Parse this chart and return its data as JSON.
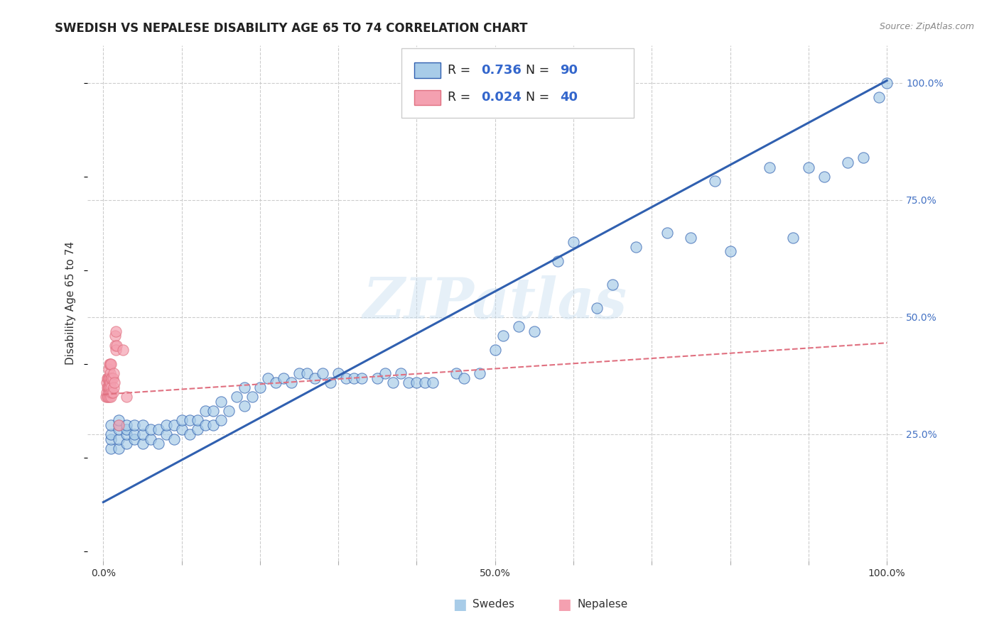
{
  "title": "SWEDISH VS NEPALESE DISABILITY AGE 65 TO 74 CORRELATION CHART",
  "source": "Source: ZipAtlas.com",
  "ylabel": "Disability Age 65 to 74",
  "xlabel": "",
  "watermark": "ZIPatlas",
  "swedish_R": 0.736,
  "swedish_N": 90,
  "nepalese_R": 0.024,
  "nepalese_N": 40,
  "xlim": [
    -0.02,
    1.02
  ],
  "ylim": [
    -0.02,
    1.08
  ],
  "xtick_positions": [
    0.0,
    0.1,
    0.2,
    0.3,
    0.4,
    0.5,
    0.6,
    0.7,
    0.8,
    0.9,
    1.0
  ],
  "xticklabels": [
    "0.0%",
    "",
    "",
    "",
    "",
    "50.0%",
    "",
    "",
    "",
    "",
    "100.0%"
  ],
  "ytick_positions": [
    0.25,
    0.5,
    0.75,
    1.0
  ],
  "ytick_labels": [
    "25.0%",
    "50.0%",
    "75.0%",
    "100.0%"
  ],
  "swedish_color": "#a8cce8",
  "nepalese_color": "#f4a0b0",
  "swedish_line_color": "#3060b0",
  "nepalese_line_color": "#e07080",
  "background_color": "#ffffff",
  "grid_color": "#cccccc",
  "swedish_scatter_x": [
    0.01,
    0.01,
    0.01,
    0.01,
    0.02,
    0.02,
    0.02,
    0.02,
    0.02,
    0.03,
    0.03,
    0.03,
    0.03,
    0.04,
    0.04,
    0.04,
    0.05,
    0.05,
    0.05,
    0.06,
    0.06,
    0.07,
    0.07,
    0.08,
    0.08,
    0.09,
    0.09,
    0.1,
    0.1,
    0.11,
    0.11,
    0.12,
    0.12,
    0.13,
    0.13,
    0.14,
    0.14,
    0.15,
    0.15,
    0.16,
    0.17,
    0.18,
    0.18,
    0.19,
    0.2,
    0.21,
    0.22,
    0.23,
    0.24,
    0.25,
    0.26,
    0.27,
    0.28,
    0.29,
    0.3,
    0.31,
    0.32,
    0.33,
    0.35,
    0.36,
    0.37,
    0.38,
    0.39,
    0.4,
    0.41,
    0.42,
    0.45,
    0.46,
    0.48,
    0.5,
    0.51,
    0.53,
    0.55,
    0.58,
    0.6,
    0.63,
    0.65,
    0.68,
    0.72,
    0.75,
    0.78,
    0.8,
    0.85,
    0.88,
    0.9,
    0.92,
    0.95,
    0.97,
    0.99,
    1.0
  ],
  "swedish_scatter_y": [
    0.22,
    0.24,
    0.25,
    0.27,
    0.22,
    0.24,
    0.26,
    0.27,
    0.28,
    0.23,
    0.25,
    0.26,
    0.27,
    0.24,
    0.25,
    0.27,
    0.23,
    0.25,
    0.27,
    0.24,
    0.26,
    0.23,
    0.26,
    0.25,
    0.27,
    0.24,
    0.27,
    0.26,
    0.28,
    0.25,
    0.28,
    0.26,
    0.28,
    0.27,
    0.3,
    0.27,
    0.3,
    0.28,
    0.32,
    0.3,
    0.33,
    0.31,
    0.35,
    0.33,
    0.35,
    0.37,
    0.36,
    0.37,
    0.36,
    0.38,
    0.38,
    0.37,
    0.38,
    0.36,
    0.38,
    0.37,
    0.37,
    0.37,
    0.37,
    0.38,
    0.36,
    0.38,
    0.36,
    0.36,
    0.36,
    0.36,
    0.38,
    0.37,
    0.38,
    0.43,
    0.46,
    0.48,
    0.47,
    0.62,
    0.66,
    0.52,
    0.57,
    0.65,
    0.68,
    0.67,
    0.79,
    0.64,
    0.82,
    0.67,
    0.82,
    0.8,
    0.83,
    0.84,
    0.97,
    1.0
  ],
  "nepalese_scatter_x": [
    0.003,
    0.004,
    0.004,
    0.005,
    0.005,
    0.005,
    0.006,
    0.006,
    0.006,
    0.007,
    0.007,
    0.007,
    0.007,
    0.008,
    0.008,
    0.008,
    0.008,
    0.009,
    0.009,
    0.009,
    0.009,
    0.01,
    0.01,
    0.01,
    0.01,
    0.011,
    0.011,
    0.012,
    0.012,
    0.013,
    0.013,
    0.014,
    0.015,
    0.015,
    0.016,
    0.016,
    0.017,
    0.02,
    0.025,
    0.03
  ],
  "nepalese_scatter_y": [
    0.33,
    0.34,
    0.36,
    0.33,
    0.35,
    0.37,
    0.33,
    0.35,
    0.37,
    0.34,
    0.35,
    0.37,
    0.39,
    0.33,
    0.35,
    0.37,
    0.4,
    0.34,
    0.36,
    0.38,
    0.4,
    0.33,
    0.35,
    0.37,
    0.4,
    0.34,
    0.37,
    0.34,
    0.37,
    0.35,
    0.38,
    0.36,
    0.44,
    0.46,
    0.43,
    0.47,
    0.44,
    0.27,
    0.43,
    0.33
  ],
  "swedish_line_x": [
    0.0,
    1.0
  ],
  "swedish_line_y": [
    0.105,
    1.005
  ],
  "nepalese_line_x": [
    0.0,
    1.0
  ],
  "nepalese_line_y": [
    0.335,
    0.445
  ]
}
